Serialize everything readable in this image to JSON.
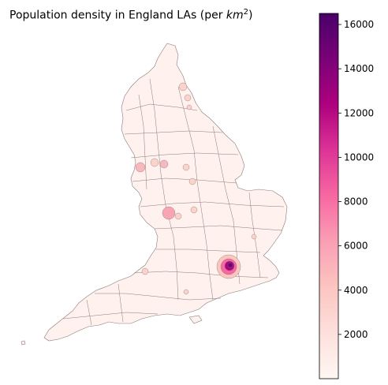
{
  "map": {
    "title_prefix": "Population density in England LAs (per ",
    "title_unit": "km",
    "title_exponent": "2",
    "title_suffix": ")"
  },
  "colorbar": {
    "colormap": "RdPu",
    "stops": [
      "#fff7f3",
      "#fde0dd",
      "#fcc5c0",
      "#fa9fb5",
      "#f768a1",
      "#dd3497",
      "#ae017e",
      "#7a0177",
      "#49006a"
    ],
    "min": 0,
    "max": 16500,
    "ticks": [
      {
        "value": 2000,
        "label": "2000"
      },
      {
        "value": 4000,
        "label": "4000"
      },
      {
        "value": 6000,
        "label": "6000"
      },
      {
        "value": 8000,
        "label": "8000"
      },
      {
        "value": 10000,
        "label": "10000"
      },
      {
        "value": 12000,
        "label": "12000"
      },
      {
        "value": 14000,
        "label": "14000"
      },
      {
        "value": 16000,
        "label": "16000"
      }
    ]
  },
  "colors": {
    "base_fill": "#fff1ee",
    "light": "#fcd2cd",
    "medium": "#f8a4b4",
    "high": "#e0489b",
    "peak": "#5a006e",
    "border": "#8a7a7a"
  }
}
